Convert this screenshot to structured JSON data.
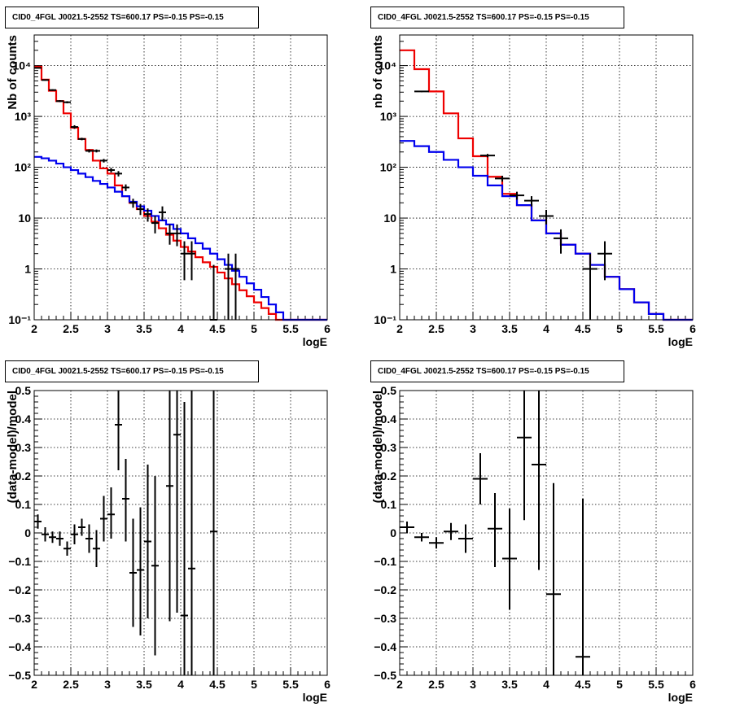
{
  "chart_data": [
    {
      "type": "step-histogram-with-points",
      "title": "CID0_4FGL J0021.5-2552 TS=600.17 PS=-0.15 PS=-0.15",
      "xlabel": "logE",
      "ylabel": "Nb of counts",
      "xlim": [
        2,
        6
      ],
      "ylim": [
        0.1,
        40000
      ],
      "yscale": "log",
      "grid": true,
      "xticks": [
        "2",
        "2.5",
        "3",
        "3.5",
        "4",
        "4.5",
        "5",
        "5.5",
        "6"
      ],
      "yticks": [
        "10⁻¹",
        "1",
        "10",
        "10²",
        "10³",
        "10⁴"
      ],
      "bin_width": 0.1,
      "series": [
        {
          "color": "#ee0000",
          "bin_edges_start": 2.0,
          "values": [
            9500,
            5300,
            3200,
            2000,
            1150,
            600,
            360,
            220,
            135,
            95,
            75,
            44,
            27,
            20,
            15,
            11,
            8.5,
            6.3,
            4.7,
            3.6,
            2.7,
            2.2,
            1.7,
            1.35,
            1.1,
            0.85,
            0.65,
            0.5,
            0.38,
            0.29,
            0.22,
            0.17,
            0.13,
            0.1,
            0.1,
            0.1,
            0.1,
            0.1,
            0.1,
            0.1
          ]
        },
        {
          "color": "#0000ee",
          "bin_edges_start": 2.0,
          "values": [
            160,
            150,
            135,
            118,
            100,
            88,
            75,
            64,
            54,
            47,
            40,
            33,
            27,
            21,
            17,
            14,
            11,
            9,
            7.5,
            6.1,
            5,
            4,
            3.2,
            2.5,
            2,
            1.55,
            1.2,
            0.92,
            0.7,
            0.52,
            0.39,
            0.28,
            0.2,
            0.14,
            0.1,
            0.1,
            0.1,
            0.1,
            0.1,
            0.1
          ]
        }
      ],
      "points": [
        {
          "x": 2.05,
          "y": 9000,
          "lo": 8800,
          "hi": 9200
        },
        {
          "x": 2.15,
          "y": 5200,
          "lo": 5050,
          "hi": 5350
        },
        {
          "x": 2.25,
          "y": 3300,
          "lo": 3180,
          "hi": 3420
        },
        {
          "x": 2.35,
          "y": 2000,
          "lo": 1910,
          "hi": 2090
        },
        {
          "x": 2.45,
          "y": 1900,
          "lo": 1810,
          "hi": 1990
        },
        {
          "x": 2.55,
          "y": 620,
          "lo": 570,
          "hi": 670
        },
        {
          "x": 2.65,
          "y": 360,
          "lo": 340,
          "hi": 380
        },
        {
          "x": 2.75,
          "y": 210,
          "lo": 195,
          "hi": 225
        },
        {
          "x": 2.85,
          "y": 210,
          "lo": 196,
          "hi": 224
        },
        {
          "x": 2.95,
          "y": 135,
          "lo": 124,
          "hi": 146
        },
        {
          "x": 3.05,
          "y": 88,
          "lo": 79,
          "hi": 97
        },
        {
          "x": 3.15,
          "y": 75,
          "lo": 66,
          "hi": 84
        },
        {
          "x": 3.25,
          "y": 40,
          "lo": 34,
          "hi": 46
        },
        {
          "x": 3.35,
          "y": 20,
          "lo": 16,
          "hi": 24
        },
        {
          "x": 3.45,
          "y": 15,
          "lo": 11.5,
          "hi": 19
        },
        {
          "x": 3.55,
          "y": 12,
          "lo": 8.5,
          "hi": 15.5
        },
        {
          "x": 3.65,
          "y": 8,
          "lo": 5,
          "hi": 11
        },
        {
          "x": 3.75,
          "y": 13,
          "lo": 9,
          "hi": 17
        },
        {
          "x": 3.85,
          "y": 5,
          "lo": 3,
          "hi": 7.5
        },
        {
          "x": 3.95,
          "y": 5,
          "lo": 2.8,
          "hi": 7.5
        },
        {
          "x": 4.05,
          "y": 2,
          "lo": 0.6,
          "hi": 3.5
        },
        {
          "x": 4.15,
          "y": 2,
          "lo": 0.6,
          "hi": 3.5
        },
        {
          "x": 4.45,
          "y": 0.1,
          "lo": 0.1,
          "hi": 1.2
        },
        {
          "x": 4.65,
          "y": 1,
          "lo": 0.1,
          "hi": 2
        },
        {
          "x": 4.75,
          "y": 1,
          "lo": 0.1,
          "hi": 2
        }
      ]
    },
    {
      "type": "step-histogram-with-points",
      "title": "CID0_4FGL J0021.5-2552 TS=600.17 PS=-0.15 PS=-0.15",
      "xlabel": "logE",
      "ylabel": "nb of counts",
      "xlim": [
        2,
        6
      ],
      "ylim": [
        0.1,
        40000
      ],
      "yscale": "log",
      "grid": true,
      "xticks": [
        "2",
        "2.5",
        "3",
        "3.5",
        "4",
        "4.5",
        "5",
        "5.5",
        "6"
      ],
      "yticks": [
        "10⁻¹",
        "1",
        "10",
        "10²",
        "10³",
        "10⁴"
      ],
      "bin_width": 0.2,
      "series": [
        {
          "color": "#ee0000",
          "bin_edges_start": 2.0,
          "values": [
            20000,
            8500,
            3100,
            1150,
            370,
            165,
            65,
            30,
            18,
            9,
            5,
            3,
            2,
            1.2,
            0.7,
            0.4,
            0.22,
            0.13,
            0.1,
            0.1
          ]
        },
        {
          "color": "#0000ee",
          "bin_edges_start": 2.0,
          "values": [
            330,
            260,
            200,
            140,
            100,
            68,
            44,
            27,
            18,
            9,
            5,
            3,
            2,
            1.2,
            0.7,
            0.4,
            0.22,
            0.13,
            0.1,
            0.1
          ]
        }
      ],
      "points": [
        {
          "x": 2.3,
          "y": 3100,
          "lo": 3000,
          "hi": 3200
        },
        {
          "x": 3.2,
          "y": 170,
          "lo": 157,
          "hi": 183
        },
        {
          "x": 3.4,
          "y": 60,
          "lo": 52,
          "hi": 68
        },
        {
          "x": 3.6,
          "y": 28,
          "lo": 23,
          "hi": 33
        },
        {
          "x": 3.8,
          "y": 22,
          "lo": 17,
          "hi": 27
        },
        {
          "x": 4.0,
          "y": 11,
          "lo": 7.5,
          "hi": 14.5
        },
        {
          "x": 4.2,
          "y": 4,
          "lo": 2,
          "hi": 6
        },
        {
          "x": 4.6,
          "y": 1,
          "lo": 0.1,
          "hi": 2
        },
        {
          "x": 4.8,
          "y": 2,
          "lo": 0.6,
          "hi": 3.5
        }
      ]
    },
    {
      "type": "scatter-with-error-bars",
      "title": "CID0_4FGL J0021.5-2552 TS=600.17 PS=-0.15 PS=-0.15",
      "xlabel": "logE",
      "ylabel": "(data-model)/model",
      "xlim": [
        2,
        6
      ],
      "ylim": [
        -0.5,
        0.5
      ],
      "grid": true,
      "xticks": [
        "2",
        "2.5",
        "3",
        "3.5",
        "4",
        "4.5",
        "5",
        "5.5",
        "6"
      ],
      "yticks": [
        "−0.5",
        "−0.4",
        "−0.3",
        "−0.2",
        "−0.1",
        "0",
        "0.1",
        "0.2",
        "0.3",
        "0.4",
        "0.5"
      ],
      "xerr": 0.05,
      "points": [
        {
          "x": 2.05,
          "y": 0.04,
          "lo": 0.015,
          "hi": 0.065
        },
        {
          "x": 2.15,
          "y": -0.005,
          "lo": -0.03,
          "hi": 0.02
        },
        {
          "x": 2.25,
          "y": -0.015,
          "lo": -0.035,
          "hi": 0.005
        },
        {
          "x": 2.35,
          "y": -0.02,
          "lo": -0.045,
          "hi": 0.005
        },
        {
          "x": 2.45,
          "y": -0.055,
          "lo": -0.08,
          "hi": -0.03
        },
        {
          "x": 2.55,
          "y": -0.005,
          "lo": -0.04,
          "hi": 0.03
        },
        {
          "x": 2.65,
          "y": 0.02,
          "lo": -0.01,
          "hi": 0.05
        },
        {
          "x": 2.75,
          "y": -0.02,
          "lo": -0.07,
          "hi": 0.03
        },
        {
          "x": 2.85,
          "y": -0.055,
          "lo": -0.12,
          "hi": 0.01
        },
        {
          "x": 2.95,
          "y": 0.05,
          "lo": -0.03,
          "hi": 0.13
        },
        {
          "x": 3.05,
          "y": 0.065,
          "lo": -0.02,
          "hi": 0.16
        },
        {
          "x": 3.15,
          "y": 0.38,
          "lo": 0.22,
          "hi": 0.5
        },
        {
          "x": 3.25,
          "y": 0.12,
          "lo": -0.03,
          "hi": 0.26
        },
        {
          "x": 3.35,
          "y": -0.14,
          "lo": -0.33,
          "hi": 0.05
        },
        {
          "x": 3.45,
          "y": -0.13,
          "lo": -0.36,
          "hi": 0.09
        },
        {
          "x": 3.55,
          "y": -0.03,
          "lo": -0.3,
          "hi": 0.24
        },
        {
          "x": 3.65,
          "y": -0.115,
          "lo": -0.43,
          "hi": 0.2
        },
        {
          "x": 3.85,
          "y": 0.165,
          "lo": -0.31,
          "hi": 0.5
        },
        {
          "x": 3.95,
          "y": 0.345,
          "lo": -0.28,
          "hi": 0.5
        },
        {
          "x": 4.05,
          "y": -0.29,
          "lo": -0.5,
          "hi": 0.46
        },
        {
          "x": 4.15,
          "y": -0.125,
          "lo": -0.5,
          "hi": 0.5
        },
        {
          "x": 4.45,
          "y": 0.005,
          "lo": -0.5,
          "hi": 0.5
        }
      ]
    },
    {
      "type": "scatter-with-error-bars",
      "title": "CID0_4FGL J0021.5-2552 TS=600.17 PS=-0.15 PS=-0.15",
      "xlabel": "logE",
      "ylabel": "(data-model)/model",
      "xlim": [
        2,
        6
      ],
      "ylim": [
        -0.5,
        0.5
      ],
      "grid": true,
      "xticks": [
        "2",
        "2.5",
        "3",
        "3.5",
        "4",
        "4.5",
        "5",
        "5.5",
        "6"
      ],
      "yticks": [
        "−0.5",
        "−0.4",
        "−0.3",
        "−0.2",
        "−0.1",
        "0",
        "0.1",
        "0.2",
        "0.3",
        "0.4",
        "0.5"
      ],
      "xerr": 0.1,
      "points": [
        {
          "x": 2.1,
          "y": 0.02,
          "lo": 0.0,
          "hi": 0.04
        },
        {
          "x": 2.3,
          "y": -0.015,
          "lo": -0.03,
          "hi": 0.0
        },
        {
          "x": 2.5,
          "y": -0.035,
          "lo": -0.055,
          "hi": -0.015
        },
        {
          "x": 2.7,
          "y": 0.005,
          "lo": -0.025,
          "hi": 0.035
        },
        {
          "x": 2.9,
          "y": -0.02,
          "lo": -0.07,
          "hi": 0.03
        },
        {
          "x": 3.1,
          "y": 0.19,
          "lo": 0.1,
          "hi": 0.28
        },
        {
          "x": 3.3,
          "y": 0.015,
          "lo": -0.12,
          "hi": 0.14
        },
        {
          "x": 3.5,
          "y": -0.09,
          "lo": -0.27,
          "hi": 0.085
        },
        {
          "x": 3.7,
          "y": 0.335,
          "lo": 0.045,
          "hi": 0.5
        },
        {
          "x": 3.9,
          "y": 0.24,
          "lo": -0.13,
          "hi": 0.5
        },
        {
          "x": 4.1,
          "y": -0.215,
          "lo": -0.5,
          "hi": 0.175
        },
        {
          "x": 4.5,
          "y": -0.435,
          "lo": -0.5,
          "hi": 0.12
        }
      ]
    }
  ]
}
